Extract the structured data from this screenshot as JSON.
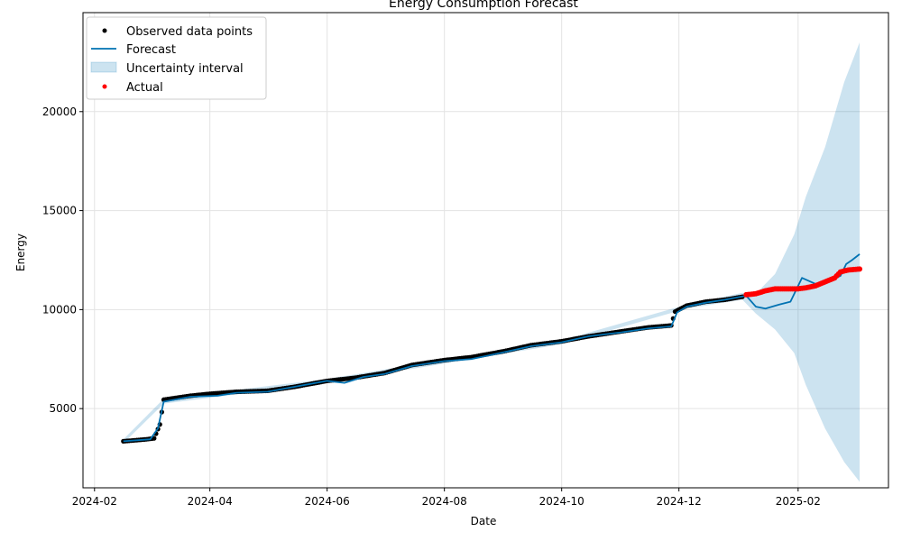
{
  "chart_data": {
    "type": "line",
    "title": "Energy Consumption Forecast",
    "xlabel": "Date",
    "ylabel": "Energy",
    "x_ticks": [
      "2024-02",
      "2024-04",
      "2024-06",
      "2024-08",
      "2024-10",
      "2024-12",
      "2025-02"
    ],
    "y_ticks": [
      5000,
      10000,
      15000,
      20000
    ],
    "xlim": [
      "2024-01-26",
      "2025-03-20"
    ],
    "ylim": [
      1000,
      25000
    ],
    "grid": true,
    "legend_position": "top-left",
    "legend": [
      {
        "label": "Observed data points",
        "marker": "dot",
        "color": "#000000"
      },
      {
        "label": "Forecast",
        "marker": "line",
        "color": "#0072B2"
      },
      {
        "label": "Uncertainty interval",
        "marker": "patch",
        "color": "#0072B2"
      },
      {
        "label": "Actual",
        "marker": "dot",
        "color": "#ff0000"
      }
    ],
    "series": [
      {
        "name": "Observed data points",
        "style": "dots",
        "color": "#000000",
        "points": [
          [
            "2024-02-16",
            3350
          ],
          [
            "2024-02-22",
            3400
          ],
          [
            "2024-02-28",
            3450
          ],
          [
            "2024-03-03",
            3500
          ],
          [
            "2024-03-06",
            4200
          ],
          [
            "2024-03-08",
            5450
          ],
          [
            "2024-03-15",
            5550
          ],
          [
            "2024-03-22",
            5650
          ],
          [
            "2024-04-01",
            5750
          ],
          [
            "2024-04-15",
            5850
          ],
          [
            "2024-05-01",
            5900
          ],
          [
            "2024-05-15",
            6100
          ],
          [
            "2024-06-01",
            6400
          ],
          [
            "2024-06-15",
            6550
          ],
          [
            "2024-07-01",
            6800
          ],
          [
            "2024-07-15",
            7200
          ],
          [
            "2024-08-01",
            7450
          ],
          [
            "2024-08-15",
            7600
          ],
          [
            "2024-09-01",
            7900
          ],
          [
            "2024-09-15",
            8200
          ],
          [
            "2024-10-01",
            8400
          ],
          [
            "2024-10-15",
            8650
          ],
          [
            "2024-11-01",
            8900
          ],
          [
            "2024-11-15",
            9100
          ],
          [
            "2024-11-27",
            9200
          ],
          [
            "2024-11-29",
            9900
          ],
          [
            "2024-12-05",
            10200
          ],
          [
            "2024-12-15",
            10400
          ],
          [
            "2024-12-25",
            10500
          ],
          [
            "2025-01-03",
            10650
          ]
        ]
      },
      {
        "name": "Forecast",
        "style": "line",
        "color": "#0072B2",
        "points": [
          [
            "2024-02-16",
            3350
          ],
          [
            "2024-03-01",
            3450
          ],
          [
            "2024-03-05",
            4000
          ],
          [
            "2024-03-08",
            5350
          ],
          [
            "2024-03-22",
            5600
          ],
          [
            "2024-04-05",
            5650
          ],
          [
            "2024-04-15",
            5800
          ],
          [
            "2024-05-01",
            5850
          ],
          [
            "2024-05-15",
            6100
          ],
          [
            "2024-06-01",
            6400
          ],
          [
            "2024-06-10",
            6300
          ],
          [
            "2024-06-20",
            6600
          ],
          [
            "2024-07-01",
            6750
          ],
          [
            "2024-07-15",
            7150
          ],
          [
            "2024-08-01",
            7400
          ],
          [
            "2024-08-15",
            7500
          ],
          [
            "2024-09-01",
            7850
          ],
          [
            "2024-09-15",
            8150
          ],
          [
            "2024-10-01",
            8350
          ],
          [
            "2024-10-15",
            8650
          ],
          [
            "2024-11-01",
            8850
          ],
          [
            "2024-11-15",
            9050
          ],
          [
            "2024-11-27",
            9150
          ],
          [
            "2024-11-30",
            9850
          ],
          [
            "2024-12-05",
            10150
          ],
          [
            "2024-12-15",
            10350
          ],
          [
            "2024-12-25",
            10500
          ],
          [
            "2025-01-05",
            10700
          ],
          [
            "2025-01-10",
            10150
          ],
          [
            "2025-01-15",
            10050
          ],
          [
            "2025-01-22",
            10250
          ],
          [
            "2025-01-28",
            10400
          ],
          [
            "2025-02-03",
            11600
          ],
          [
            "2025-02-10",
            11300
          ],
          [
            "2025-02-18",
            11500
          ],
          [
            "2025-02-23",
            11700
          ],
          [
            "2025-02-26",
            12300
          ],
          [
            "2025-03-01",
            12500
          ],
          [
            "2025-03-05",
            12800
          ]
        ]
      },
      {
        "name": "Uncertainty interval",
        "style": "band",
        "color": "#0072B2",
        "points": [
          [
            "2024-02-16",
            3250,
            3450
          ],
          [
            "2024-03-08",
            5250,
            5500
          ],
          [
            "2024-06-01",
            6300,
            6500
          ],
          [
            "2024-10-01",
            8250,
            8450
          ],
          [
            "2024-12-05",
            10050,
            10250
          ],
          [
            "2025-01-03",
            10500,
            10850
          ],
          [
            "2025-01-10",
            9800,
            10800
          ],
          [
            "2025-01-20",
            9000,
            11800
          ],
          [
            "2025-01-30",
            7800,
            13800
          ],
          [
            "2025-02-05",
            6200,
            15700
          ],
          [
            "2025-02-15",
            4000,
            18200
          ],
          [
            "2025-02-25",
            2300,
            21500
          ],
          [
            "2025-03-05",
            1300,
            23500
          ]
        ]
      },
      {
        "name": "Actual",
        "style": "dots",
        "color": "#ff0000",
        "points": [
          [
            "2025-01-05",
            10750
          ],
          [
            "2025-01-10",
            10800
          ],
          [
            "2025-01-15",
            10950
          ],
          [
            "2025-01-20",
            11050
          ],
          [
            "2025-01-25",
            11050
          ],
          [
            "2025-02-01",
            11050
          ],
          [
            "2025-02-05",
            11100
          ],
          [
            "2025-02-10",
            11200
          ],
          [
            "2025-02-15",
            11400
          ],
          [
            "2025-02-20",
            11600
          ],
          [
            "2025-02-23",
            11900
          ],
          [
            "2025-02-27",
            12000
          ],
          [
            "2025-03-05",
            12050
          ]
        ]
      }
    ]
  }
}
